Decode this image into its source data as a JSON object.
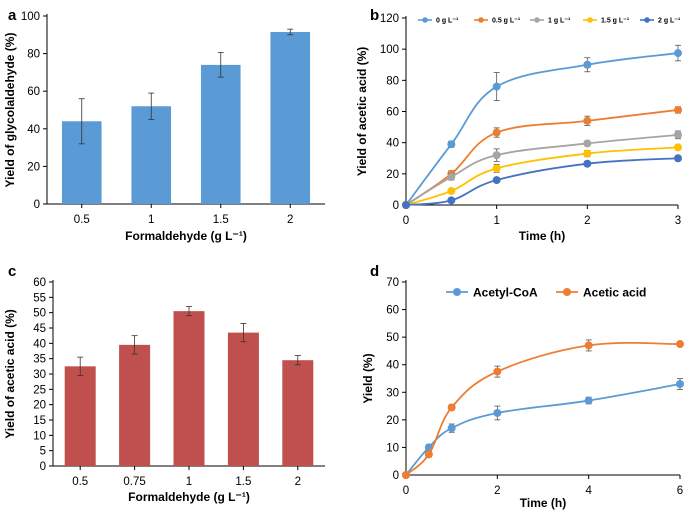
{
  "chart_data": [
    {
      "panel": "a",
      "type": "bar",
      "categories": [
        "0.5",
        "1",
        "1.5",
        "2"
      ],
      "values": [
        44,
        52,
        74,
        91.5
      ],
      "errors": [
        12,
        7,
        6.5,
        1.5
      ],
      "xlabel": "Formaldehyde (g L⁻¹)",
      "ylabel": "Yield of glycolaldehyde (%)",
      "ylim": [
        0,
        100
      ],
      "yticks": [
        "0",
        "20",
        "40",
        "60",
        "80",
        "100"
      ],
      "color": "#5b9bd5"
    },
    {
      "panel": "b",
      "type": "line",
      "x": [
        0,
        0.5,
        1,
        2,
        3
      ],
      "series": [
        {
          "name": "0 g L⁻¹",
          "values": [
            0,
            39,
            76,
            90,
            97.5
          ],
          "errors": [
            0,
            2,
            9,
            4.5,
            5
          ],
          "color": "#5b9bd5"
        },
        {
          "name": "0.5 g L⁻¹",
          "values": [
            0,
            20,
            46.5,
            54,
            61
          ],
          "errors": [
            0,
            2,
            3,
            3,
            2
          ],
          "color": "#ed7d31"
        },
        {
          "name": "1 g L⁻¹",
          "values": [
            0,
            18,
            32,
            39.5,
            45
          ],
          "errors": [
            0,
            2,
            4,
            1.5,
            2.5
          ],
          "color": "#a5a5a5"
        },
        {
          "name": "1.5 g L⁻¹",
          "values": [
            0,
            9,
            23.5,
            33,
            37
          ],
          "errors": [
            0,
            1,
            2.5,
            2,
            1.5
          ],
          "color": "#ffc000"
        },
        {
          "name": "2 g L⁻¹",
          "values": [
            0,
            3,
            16,
            26.5,
            30
          ],
          "errors": [
            0,
            1,
            1,
            1.5,
            1.5
          ],
          "color": "#4472c4"
        }
      ],
      "xlabel": "Time (h)",
      "ylabel": "Yield of acetic acid (%)",
      "xlim": [
        0,
        3
      ],
      "ylim": [
        0,
        120
      ],
      "xticks": [
        "0",
        "1",
        "2",
        "3"
      ],
      "yticks": [
        "0",
        "20",
        "40",
        "60",
        "80",
        "100",
        "120"
      ]
    },
    {
      "panel": "c",
      "type": "bar",
      "categories": [
        "0.5",
        "0.75",
        "1",
        "1.5",
        "2"
      ],
      "values": [
        32.5,
        39.5,
        50.5,
        43.5,
        34.5
      ],
      "errors": [
        3,
        3,
        1.5,
        3,
        1.5
      ],
      "xlabel": "Formaldehyde (g L⁻¹)",
      "ylabel": "Yield of acetic acid (%)",
      "ylim": [
        0,
        60
      ],
      "yticks": [
        "0",
        "5",
        "10",
        "15",
        "20",
        "25",
        "30",
        "35",
        "40",
        "45",
        "50",
        "55",
        "60"
      ],
      "color": "#c0504d"
    },
    {
      "panel": "d",
      "type": "line",
      "x": [
        0,
        0.5,
        1,
        2,
        4,
        6
      ],
      "series": [
        {
          "name": "Acetyl-CoA",
          "values": [
            0,
            10,
            17,
            22.5,
            27,
            33
          ],
          "errors": [
            0,
            1,
            1.5,
            2.5,
            1.2,
            2
          ],
          "color": "#5b9bd5"
        },
        {
          "name": "Acetic acid",
          "values": [
            0,
            7.5,
            24.5,
            37.5,
            47,
            47.5
          ],
          "errors": [
            0,
            1,
            1,
            2,
            2,
            0.8
          ],
          "color": "#ed7d31"
        }
      ],
      "xlabel": "Time (h)",
      "ylabel": "Yield (%)",
      "xlim": [
        0,
        6
      ],
      "ylim": [
        0,
        70
      ],
      "xticks": [
        "0",
        "2",
        "4",
        "6"
      ],
      "yticks": [
        "0",
        "10",
        "20",
        "30",
        "40",
        "50",
        "60",
        "70"
      ]
    }
  ]
}
